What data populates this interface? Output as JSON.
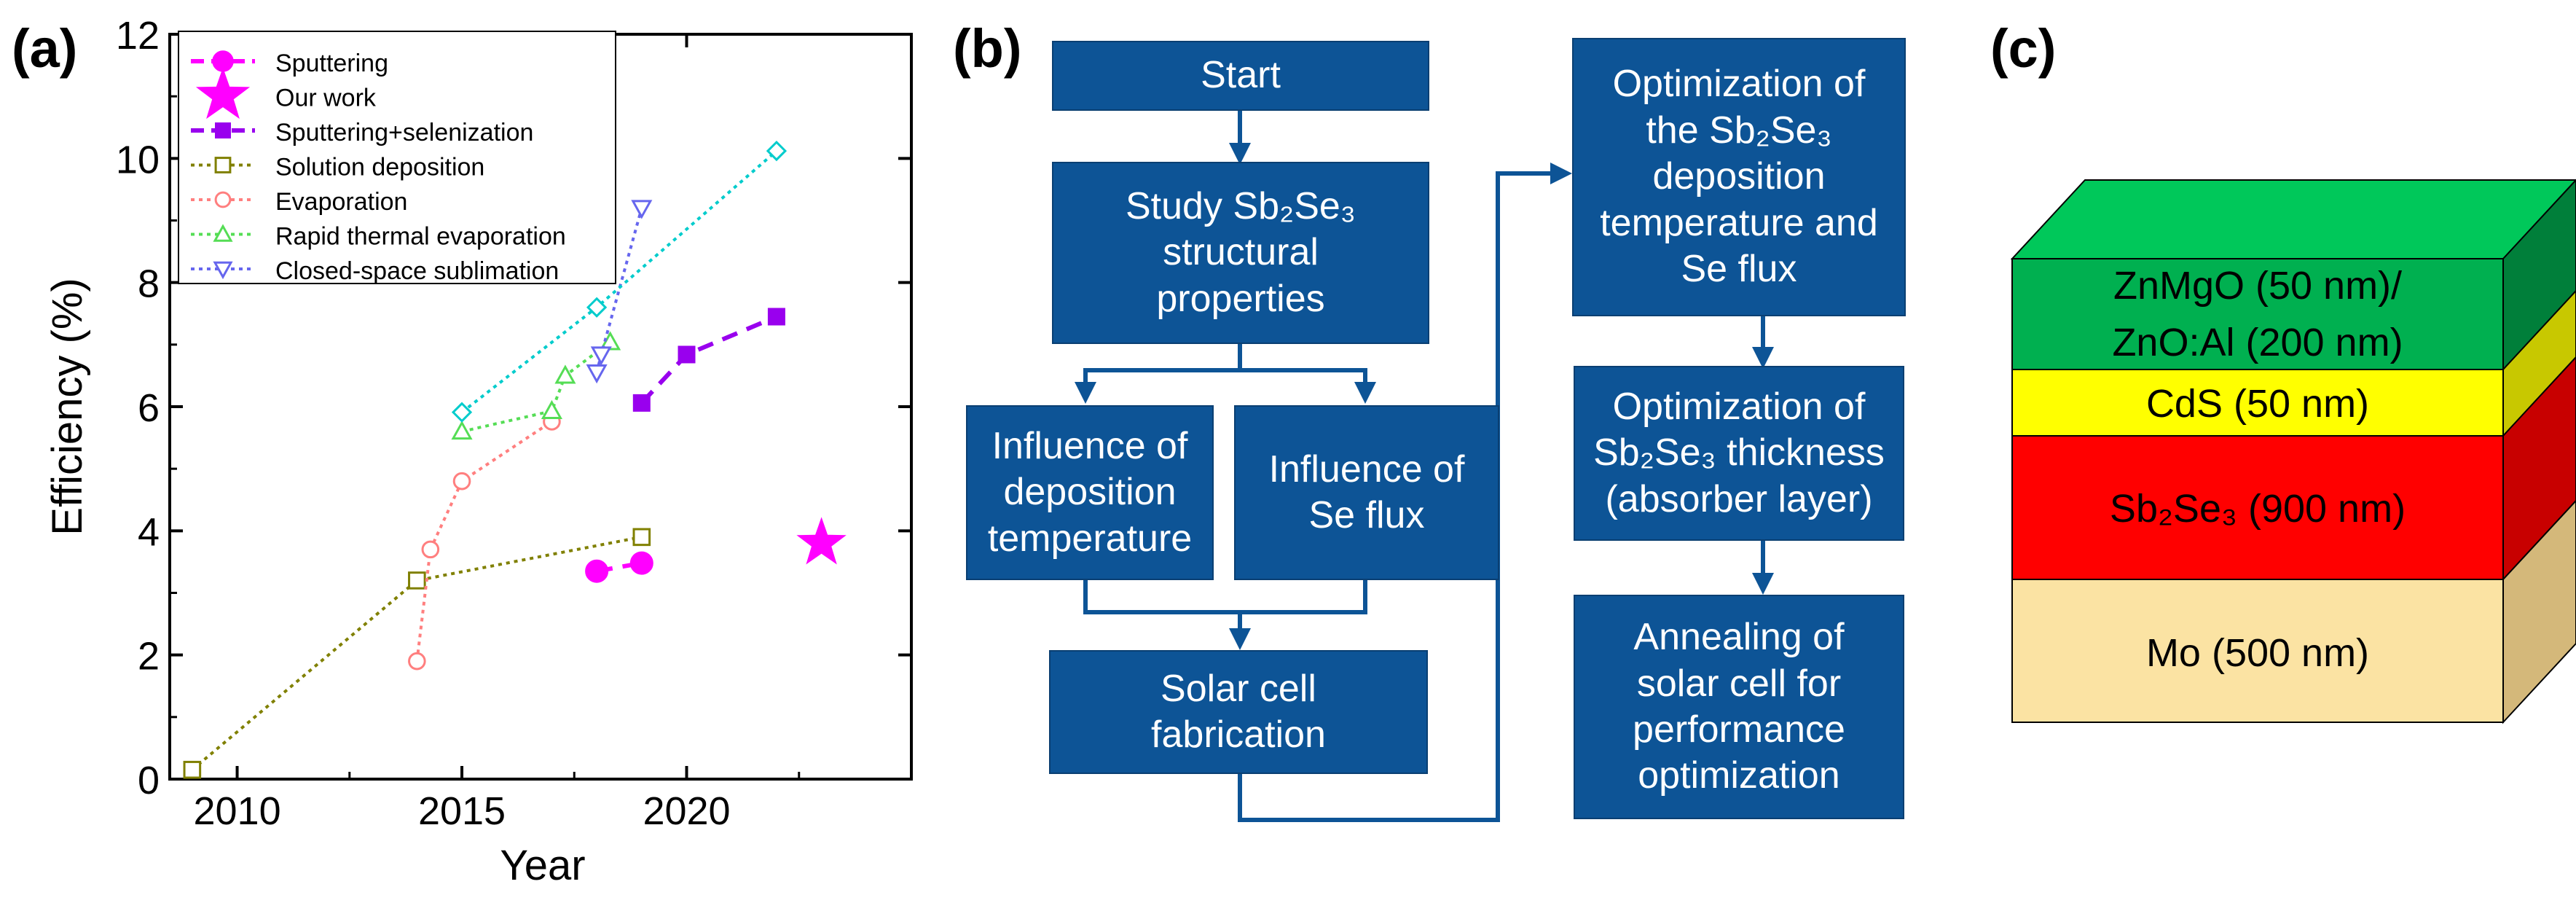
{
  "labels": {
    "a": "(a)",
    "b": "(b)",
    "c": "(c)"
  },
  "chart_data": {
    "type": "line",
    "title": "",
    "xlabel": "Year",
    "ylabel": "Efficiency (%)",
    "xlim": [
      2008.5,
      2025
    ],
    "ylim": [
      0,
      12
    ],
    "xticks": [
      2010,
      2015,
      2020
    ],
    "yticks": [
      0,
      2,
      4,
      6,
      8,
      10,
      12
    ],
    "grid": false,
    "legend_position": "top-left",
    "series": [
      {
        "name": "Sputtering",
        "color": "#ff00ff",
        "marker": "circle-filled",
        "line": "dashed",
        "x": [
          2018,
          2019
        ],
        "y": [
          3.35,
          3.48
        ]
      },
      {
        "name": "Our work",
        "color": "#ff00ff",
        "marker": "star",
        "line": "none",
        "x": [
          2023
        ],
        "y": [
          3.8
        ]
      },
      {
        "name": "Sputtering+selenization",
        "color": "#9900ee",
        "marker": "square-filled",
        "line": "dashed",
        "x": [
          2019,
          2020,
          2022
        ],
        "y": [
          6.06,
          6.84,
          7.45
        ]
      },
      {
        "name": "Solution deposition",
        "color": "#808000",
        "marker": "square-open",
        "line": "dotted",
        "x": [
          2009,
          2014,
          2019
        ],
        "y": [
          0.15,
          3.2,
          3.9
        ]
      },
      {
        "name": "Evaporation",
        "color": "#ff7f7f",
        "marker": "circle-open",
        "line": "dotted",
        "x": [
          2014,
          2014.3,
          2015,
          2017
        ],
        "y": [
          1.9,
          3.7,
          4.8,
          5.76
        ]
      },
      {
        "name": "Rapid thermal evaporation",
        "color": "#55dd55",
        "marker": "triangle-up-open",
        "line": "dotted",
        "x": [
          2015,
          2017,
          2017.3,
          2018.3
        ],
        "y": [
          5.6,
          5.93,
          6.5,
          7.04
        ]
      },
      {
        "name": "Closed-space sublimation",
        "color": "#6666ee",
        "marker": "triangle-down-open",
        "line": "dotted",
        "x": [
          2018,
          2018.1,
          2019
        ],
        "y": [
          6.55,
          6.84,
          9.2
        ]
      },
      {
        "name": "",
        "color": "#00cccc",
        "marker": "diamond-open",
        "line": "dotted",
        "x": [
          2015,
          2018,
          2022
        ],
        "y": [
          5.91,
          7.6,
          10.12
        ]
      }
    ]
  },
  "flowchart": {
    "start": "Start",
    "study": [
      "Study Sb₂Se₃",
      "structural",
      "properties"
    ],
    "influence_temp": [
      "Influence of",
      "deposition",
      "temperature"
    ],
    "influence_se": [
      "Influence of",
      "Se flux"
    ],
    "fabrication": [
      "Solar cell",
      "fabrication"
    ],
    "optimization_temp": [
      "Optimization of",
      "the Sb₂Se₃",
      "deposition",
      "temperature and",
      "Se flux"
    ],
    "optimization_thick": [
      "Optimization of",
      "Sb₂Se₃ thickness",
      "(absorber layer)"
    ],
    "annealing": [
      "Annealing of",
      "solar cell for",
      "performance",
      "optimization"
    ]
  },
  "stack": {
    "layers": [
      {
        "label_line1": "ZnMgO (50 nm)/",
        "label_line2": "ZnO:Al (200 nm)",
        "color": "#00b050",
        "side": "#007f3a"
      },
      {
        "label_line1": "CdS (50 nm)",
        "color": "#ffff00",
        "side": "#c8c800"
      },
      {
        "label_line1": "Sb₂Se₃ (900 nm)",
        "color": "#ff0000",
        "side": "#c80000"
      },
      {
        "label_line1": "Mo (500 nm)",
        "color": "#fbe3a3",
        "side": "#d4b87a"
      }
    ],
    "top_color": "#00c85a"
  }
}
